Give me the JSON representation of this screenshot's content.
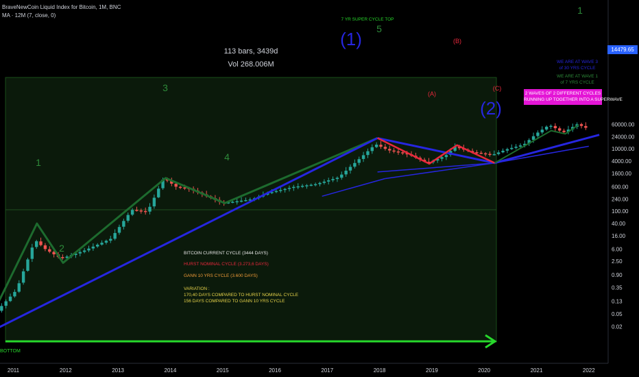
{
  "header": {
    "symbol_line": "BraveNewCoin Liquid Index for Bitcoin, 1M, BNC",
    "ma_line": "MA · 12M (7, close, 0)"
  },
  "stats": {
    "bars": "113 bars, 3439d",
    "vol": "Vol 268.006M"
  },
  "price_tag": "14479.65",
  "chart_data": {
    "type": "candlestick",
    "scale": "log",
    "y_ticks": [
      "60000.00",
      "24000.00",
      "10000.00",
      "4000.00",
      "1600.00",
      "600.00",
      "240.00",
      "100.00",
      "40.00",
      "16.00",
      "6.00",
      "2.50",
      "0.90",
      "0.35",
      "0.13",
      "0.05",
      "0.02"
    ],
    "x_ticks": [
      "2011",
      "2012",
      "2013",
      "2014",
      "2015",
      "2016",
      "2017",
      "2018",
      "2019",
      "2020",
      "2021",
      "2022"
    ],
    "grid": false,
    "path_key": [
      [
        2010.4,
        0.01
      ],
      [
        2010.75,
        0.07
      ],
      [
        2011.1,
        0.3
      ],
      [
        2011.45,
        12
      ],
      [
        2011.65,
        6
      ],
      [
        2011.95,
        3
      ],
      [
        2012.4,
        5.5
      ],
      [
        2012.9,
        13
      ],
      [
        2013.3,
        110
      ],
      [
        2013.6,
        95
      ],
      [
        2013.91,
        1150
      ],
      [
        2014.15,
        600
      ],
      [
        2014.4,
        520
      ],
      [
        2015.04,
        180
      ],
      [
        2015.6,
        240
      ],
      [
        2015.9,
        380
      ],
      [
        2016.4,
        600
      ],
      [
        2016.8,
        720
      ],
      [
        2017.25,
        1200
      ],
      [
        2017.65,
        4700
      ],
      [
        2017.96,
        14000
      ],
      [
        2018.2,
        9000
      ],
      [
        2018.6,
        6500
      ],
      [
        2018.95,
        3500
      ],
      [
        2019.3,
        6000
      ],
      [
        2019.48,
        11500
      ],
      [
        2019.8,
        7800
      ],
      [
        2020.2,
        6400
      ],
      [
        2020.45,
        9400
      ],
      [
        2020.8,
        13800
      ],
      [
        2021.05,
        32000
      ],
      [
        2021.28,
        58000
      ],
      [
        2021.55,
        33000
      ],
      [
        2021.82,
        62000
      ],
      [
        2021.97,
        47000
      ]
    ],
    "annotations": {
      "wave_labels": [
        "1",
        "2",
        "3",
        "4",
        "5",
        "1"
      ],
      "cycle_top": "7 YR SUPER CYCLE TOP",
      "big_labels": [
        "(1)",
        "(2)"
      ],
      "abc": [
        "(A)",
        "(B)",
        "(C)"
      ],
      "wave3_text": [
        "WE ARE AT WAVE 3",
        "of 30 YRS CYCLE"
      ],
      "wave1_text": [
        "WE ARE AT WAVE 1",
        "of 7 YRS CYCLE"
      ],
      "pink_box": [
        "2 WAVES OF 2 DIFFERENT CYCLES",
        "RUNNING UP TOGETHER INTO A SUPERWAVE"
      ],
      "info": {
        "line1": "BITCOIN CURRENT CYCLE (3444 DAYS)",
        "line2": "HURST NOMINAL CYCLE (3.273,6 DAYS)",
        "line3": "GANN 10 YRS CYCLE (3.600 DAYS)",
        "line4": "VARIATION :",
        "line5": "170,40 DAYS COMPARED TO HURST NOMINAL CYCLE",
        "line6": "156 DAYS COMPARED TO GANN 10 YRS CYCLE"
      },
      "bottom": "BOTTOM"
    }
  },
  "colors": {
    "up": "#26a69a",
    "down": "#ef5350",
    "green_line": "#1d6b2e",
    "blue_line": "#2626e0",
    "red_line": "#e8283c",
    "arrow": "#27d82b",
    "box_fill": "#0b1a0b",
    "box_border": "#1a4d1a",
    "axis_text": "#d1d4dc",
    "pink": "#e415d6",
    "wave_label": "#2e8b3a",
    "tag": "#2962ff"
  }
}
